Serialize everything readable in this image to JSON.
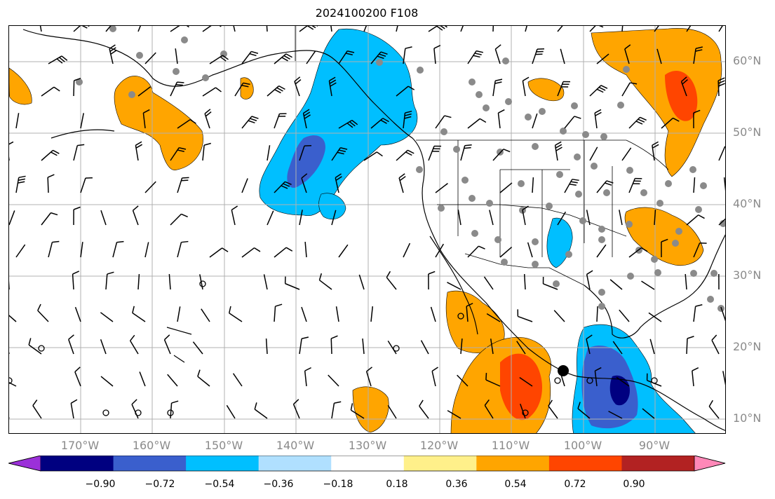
{
  "title": "2024100200 F108",
  "map": {
    "lat_labels": [
      "60°N",
      "50°N",
      "40°N",
      "30°N",
      "20°N",
      "10°N"
    ],
    "lon_labels": [
      "170°W",
      "160°W",
      "150°W",
      "140°W",
      "130°W",
      "120°W",
      "110°W",
      "100°W",
      "90°W"
    ],
    "gridlines": true,
    "extent": {
      "lon_min": -180,
      "lon_max": -80,
      "lat_min": 8,
      "lat_max": 65
    }
  },
  "colorbar": {
    "ticks": [
      "−0.90",
      "−0.72",
      "−0.54",
      "−0.36",
      "−0.18",
      "0.18",
      "0.36",
      "0.54",
      "0.72",
      "0.90"
    ],
    "levels": [
      -0.9,
      -0.72,
      -0.54,
      -0.36,
      -0.18,
      0.18,
      0.36,
      0.54,
      0.72,
      0.9
    ],
    "colors": [
      "#9b30d9",
      "#000080",
      "#3a5fcd",
      "#00bfff",
      "#b0e0ff",
      "#ffffff",
      "#fff08a",
      "#ffa500",
      "#ff4500",
      "#b22222",
      "#ff88b8"
    ],
    "extend": "both"
  },
  "colors": {
    "gridline": "#b0b0b0",
    "coast": "#000000",
    "station": "#8a8a8a"
  }
}
